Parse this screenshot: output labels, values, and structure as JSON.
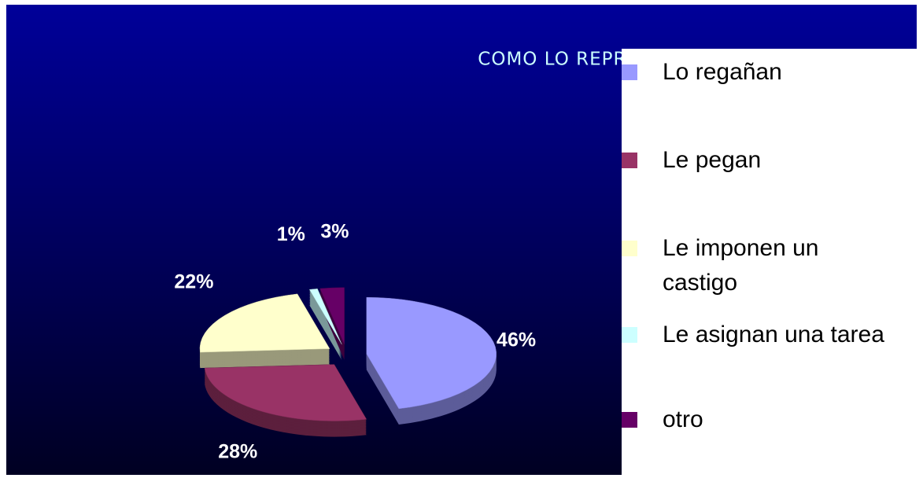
{
  "chart_data": {
    "type": "pie",
    "title": "COMO LO REPRENDEN",
    "categories": [
      "Lo regañan",
      "Le pegan",
      "Le imponen un castigo",
      "Le asignan una tarea",
      "otro"
    ],
    "values": [
      46,
      28,
      22,
      1,
      3
    ],
    "value_labels": [
      "46%",
      "28%",
      "22%",
      "1%",
      "3%"
    ],
    "colors": [
      "#9999ff",
      "#993366",
      "#ffffcc",
      "#ccffff",
      "#660066"
    ],
    "legend": "right"
  }
}
